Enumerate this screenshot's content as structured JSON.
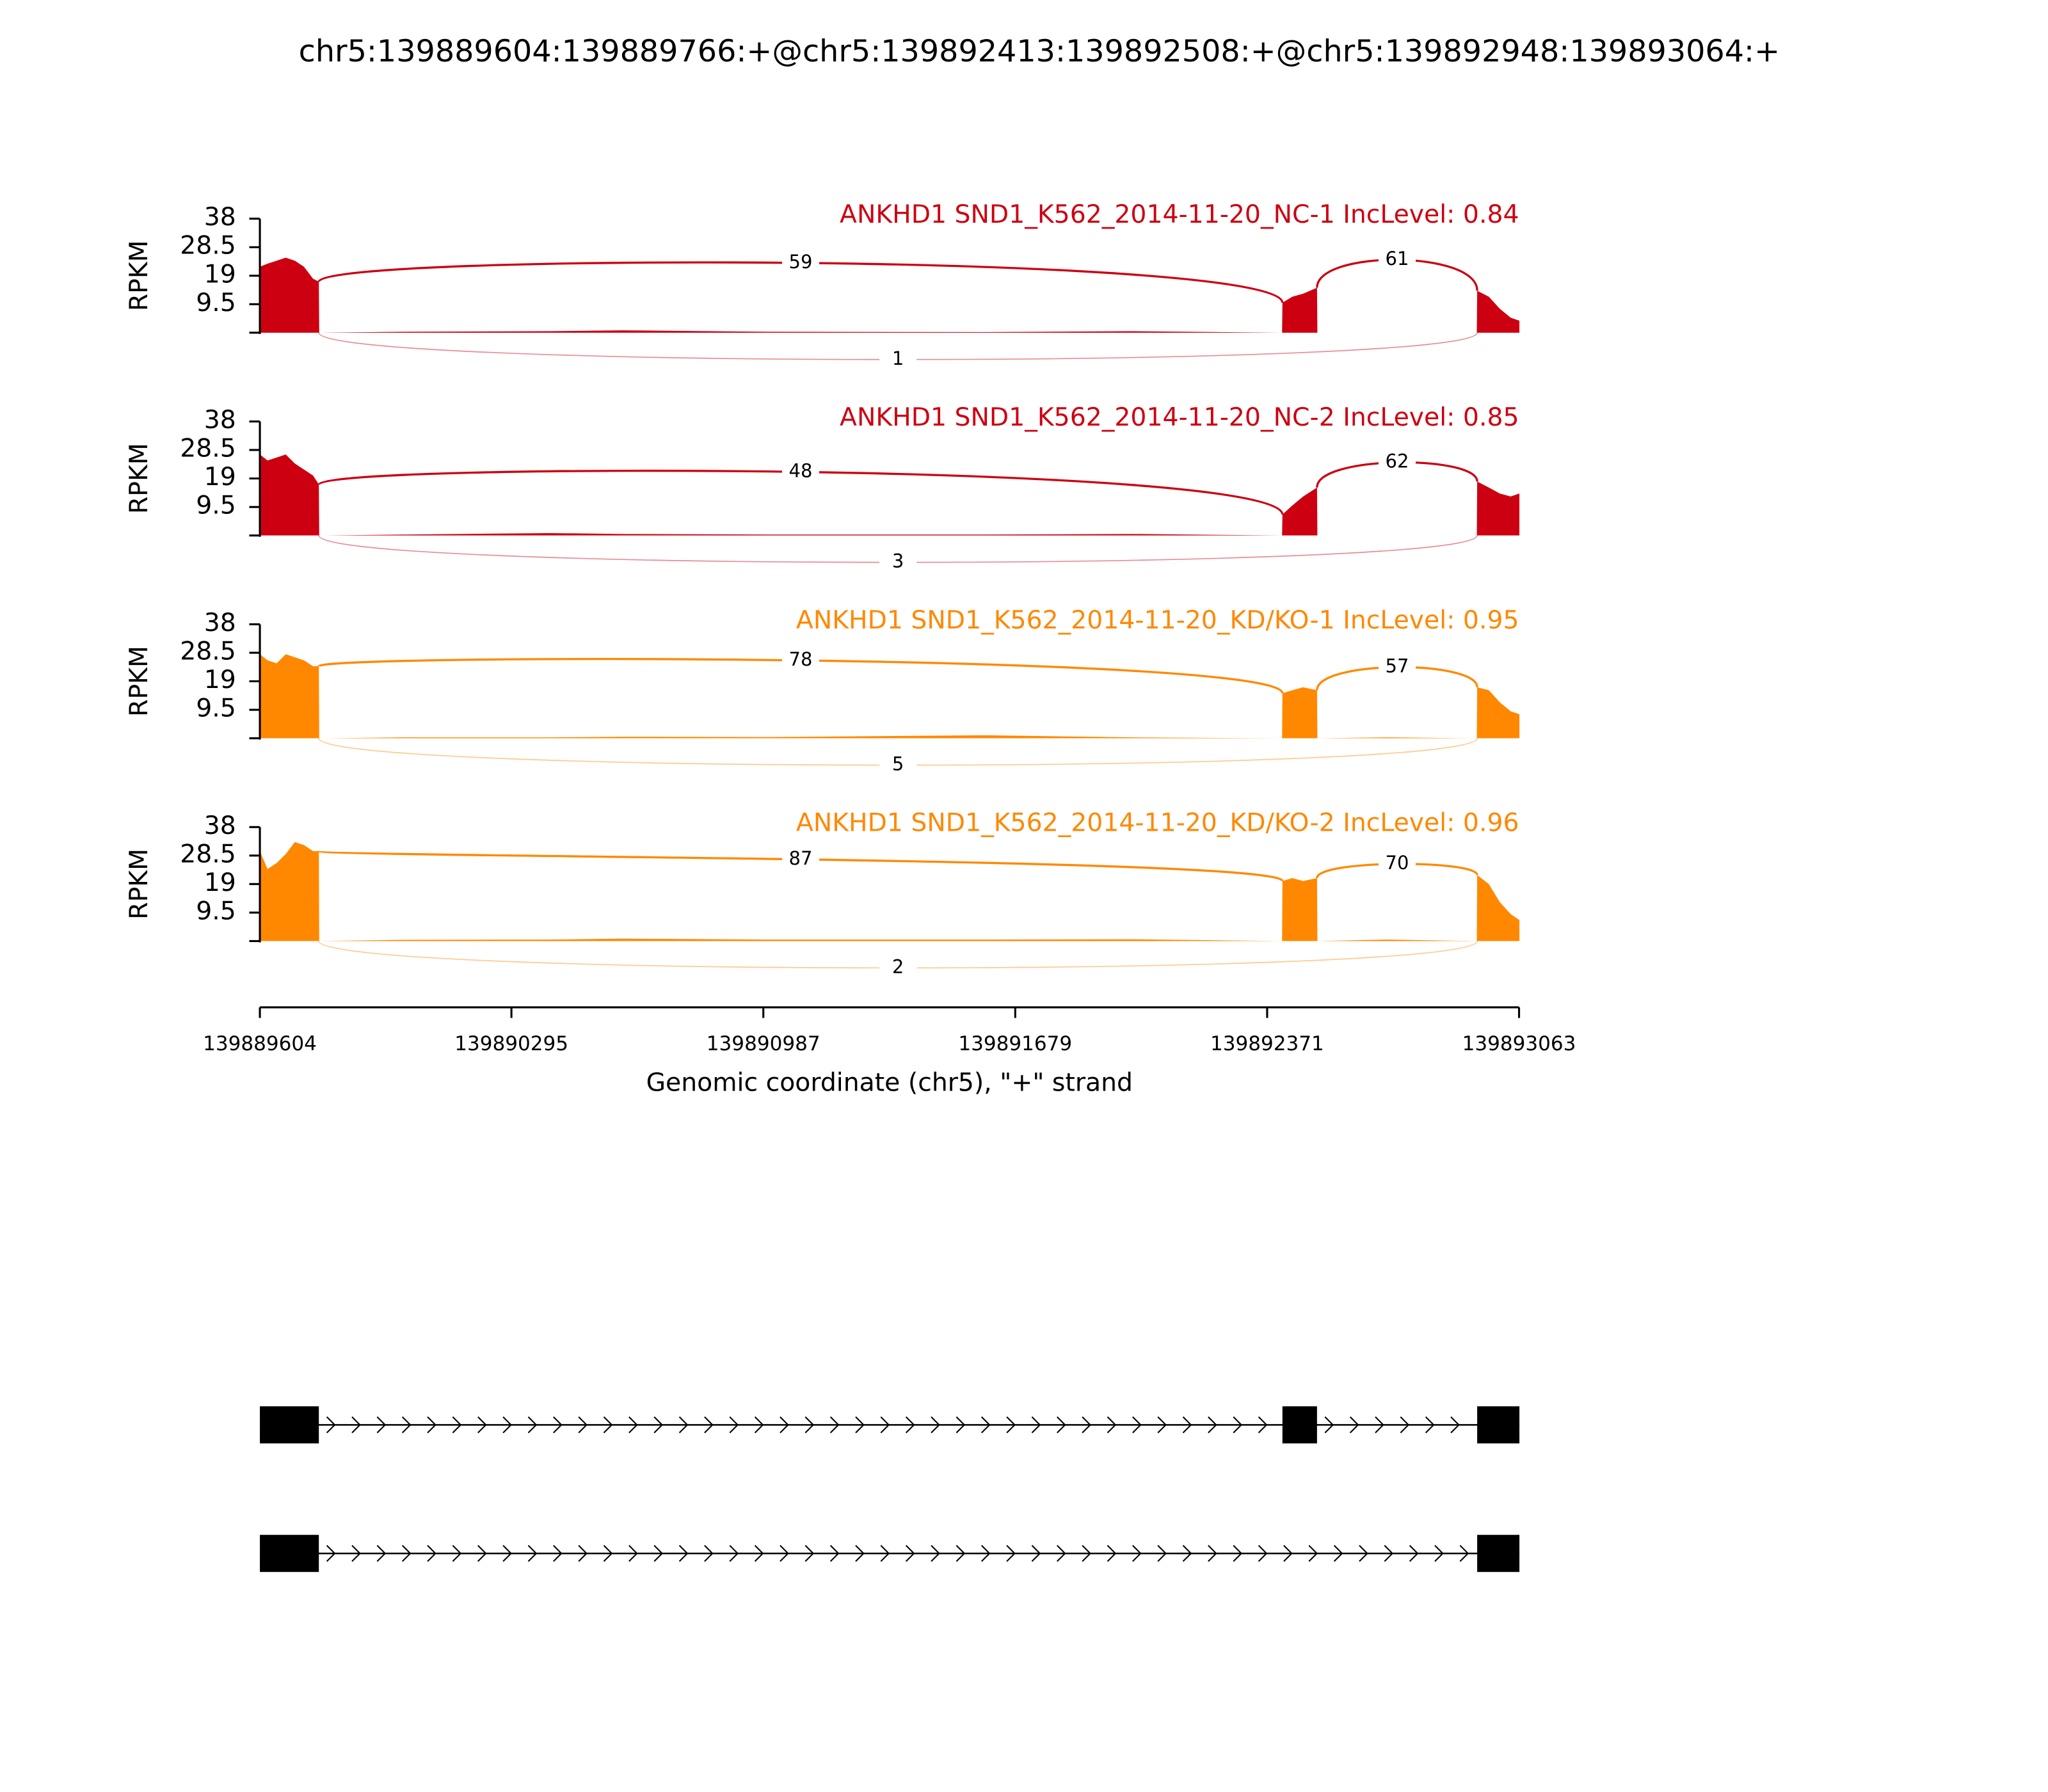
{
  "chart_data": {
    "type": "sashimi",
    "title": "chr5:139889604:139889766:+@chr5:139892413:139892508:+@chr5:139892948:139893064:+",
    "ylabel": "RPKM",
    "xlabel": "Genomic coordinate (chr5), \"+\" strand",
    "ylim": [
      0,
      38
    ],
    "yticks": [
      9.5,
      19,
      28.5,
      38
    ],
    "xlim": [
      139889604,
      139893063
    ],
    "xticks": [
      139889604,
      139890295,
      139890987,
      139891679,
      139892371,
      139893063
    ],
    "x": [
      139889604,
      139889625,
      139889650,
      139889675,
      139889700,
      139889725,
      139889750,
      139889766,
      139889767,
      139890000,
      139890400,
      139890600,
      139891000,
      139891600,
      139892000,
      139892412,
      139892413,
      139892440,
      139892470,
      139892508,
      139892509,
      139892700,
      139892947,
      139892948,
      139892980,
      139893010,
      139893040,
      139893064
    ],
    "series": [
      {
        "name": "ANKHD1 SND1_K562_2014-11-20_NC-1 IncLevel: 0.84",
        "color": "#cc0011",
        "values": [
          22,
          23,
          24,
          25,
          24,
          22,
          18,
          17,
          0,
          0.3,
          0.5,
          0.8,
          0.3,
          0.2,
          0.5,
          0,
          10,
          12,
          13,
          15,
          0,
          0,
          0,
          14,
          12,
          8,
          5,
          4
        ],
        "inclusion": [
          59,
          61
        ],
        "skipping": 1
      },
      {
        "name": "ANKHD1 SND1_K562_2014-11-20_NC-2 IncLevel: 0.85",
        "color": "#cc0011",
        "values": [
          27,
          25,
          26,
          27,
          24,
          22,
          20,
          17,
          0,
          0.3,
          0.8,
          0.5,
          0.3,
          0.3,
          0.5,
          0,
          7,
          10,
          13,
          16,
          0,
          0,
          0,
          18,
          16,
          14,
          13,
          14
        ],
        "inclusion": [
          48,
          62
        ],
        "skipping": 3
      },
      {
        "name": "ANKHD1 SND1_K562_2014-11-20_KD/KO-1 IncLevel: 0.95",
        "color": "#ff8800",
        "values": [
          28,
          26,
          25,
          28,
          27,
          26,
          24,
          24,
          0,
          0.3,
          0.3,
          0.5,
          0.4,
          1,
          0.3,
          0,
          15,
          16,
          17,
          16,
          0,
          0.3,
          0,
          17,
          16,
          12,
          9,
          8
        ],
        "inclusion": [
          78,
          57
        ],
        "skipping": 5
      },
      {
        "name": "ANKHD1 SND1_K562_2014-11-20_KD/KO-2 IncLevel: 0.96",
        "color": "#ff8800",
        "values": [
          30,
          24,
          26,
          29,
          33,
          32,
          30,
          30,
          0,
          0.4,
          0.5,
          0.8,
          0.5,
          0.5,
          0.6,
          0,
          20,
          21,
          20,
          21,
          0,
          0.5,
          0,
          22,
          19,
          13,
          9,
          7
        ],
        "inclusion": [
          87,
          70
        ],
        "skipping": 2
      }
    ],
    "transcripts": [
      [
        [
          139889604,
          139889766
        ],
        [
          139892413,
          139892508
        ],
        [
          139892948,
          139893064
        ]
      ],
      [
        [
          139889604,
          139889766
        ],
        [
          139892948,
          139893064
        ]
      ]
    ]
  }
}
